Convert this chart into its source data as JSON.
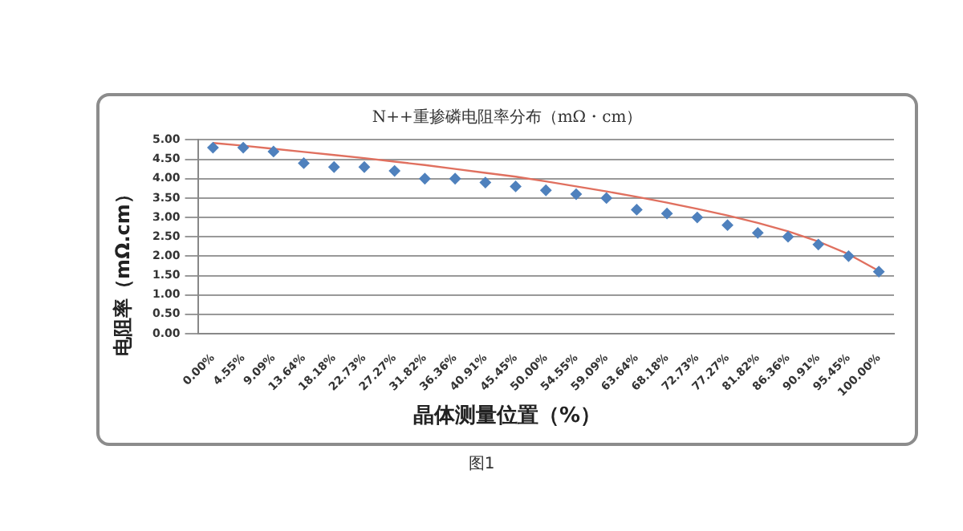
{
  "chart_data": {
    "type": "scatter",
    "title": "N++重掺磷电阻率分布（mΩ・cm）",
    "xlabel": "晶体测量位置（%）",
    "ylabel": "电阻率（mΩ.cm）",
    "categories": [
      "0.00%",
      "4.55%",
      "9.09%",
      "13.64%",
      "18.18%",
      "22.73%",
      "27.27%",
      "31.82%",
      "36.36%",
      "40.91%",
      "45.45%",
      "50.00%",
      "54.55%",
      "59.09%",
      "63.64%",
      "68.18%",
      "72.73%",
      "77.27%",
      "81.82%",
      "86.36%",
      "90.91%",
      "95.45%",
      "100.00%"
    ],
    "series": [
      {
        "color": "#4f81bd",
        "marker": "diamond",
        "values": [
          4.8,
          4.8,
          4.7,
          4.4,
          4.3,
          4.3,
          4.2,
          4.0,
          4.0,
          3.9,
          3.8,
          3.7,
          3.6,
          3.5,
          3.2,
          3.1,
          3.0,
          2.8,
          2.6,
          2.5,
          2.3,
          2.0,
          1.6
        ]
      },
      {
        "type": "line",
        "color": "#e0705f",
        "marker": "none",
        "values": [
          4.92,
          4.85,
          4.77,
          4.69,
          4.61,
          4.53,
          4.44,
          4.35,
          4.25,
          4.15,
          4.05,
          3.93,
          3.8,
          3.67,
          3.53,
          3.38,
          3.22,
          3.05,
          2.86,
          2.64,
          2.38,
          2.05,
          1.62
        ]
      }
    ],
    "ylim": [
      0,
      5
    ],
    "yticks": [
      {
        "value": 0,
        "label": "0.00"
      },
      {
        "value": 0.5,
        "label": "0.50"
      },
      {
        "value": 1,
        "label": "1.00"
      },
      {
        "value": 1.5,
        "label": "1.50"
      },
      {
        "value": 2,
        "label": "2.00"
      },
      {
        "value": 2.5,
        "label": "2.50"
      },
      {
        "value": 3,
        "label": "3.00"
      },
      {
        "value": 3.5,
        "label": "3.50"
      },
      {
        "value": 4,
        "label": "4.00"
      },
      {
        "value": 4.5,
        "label": "4.50"
      },
      {
        "value": 5,
        "label": "5.00"
      }
    ],
    "grid": "y",
    "legend": false,
    "annotations": [
      "图1"
    ]
  }
}
